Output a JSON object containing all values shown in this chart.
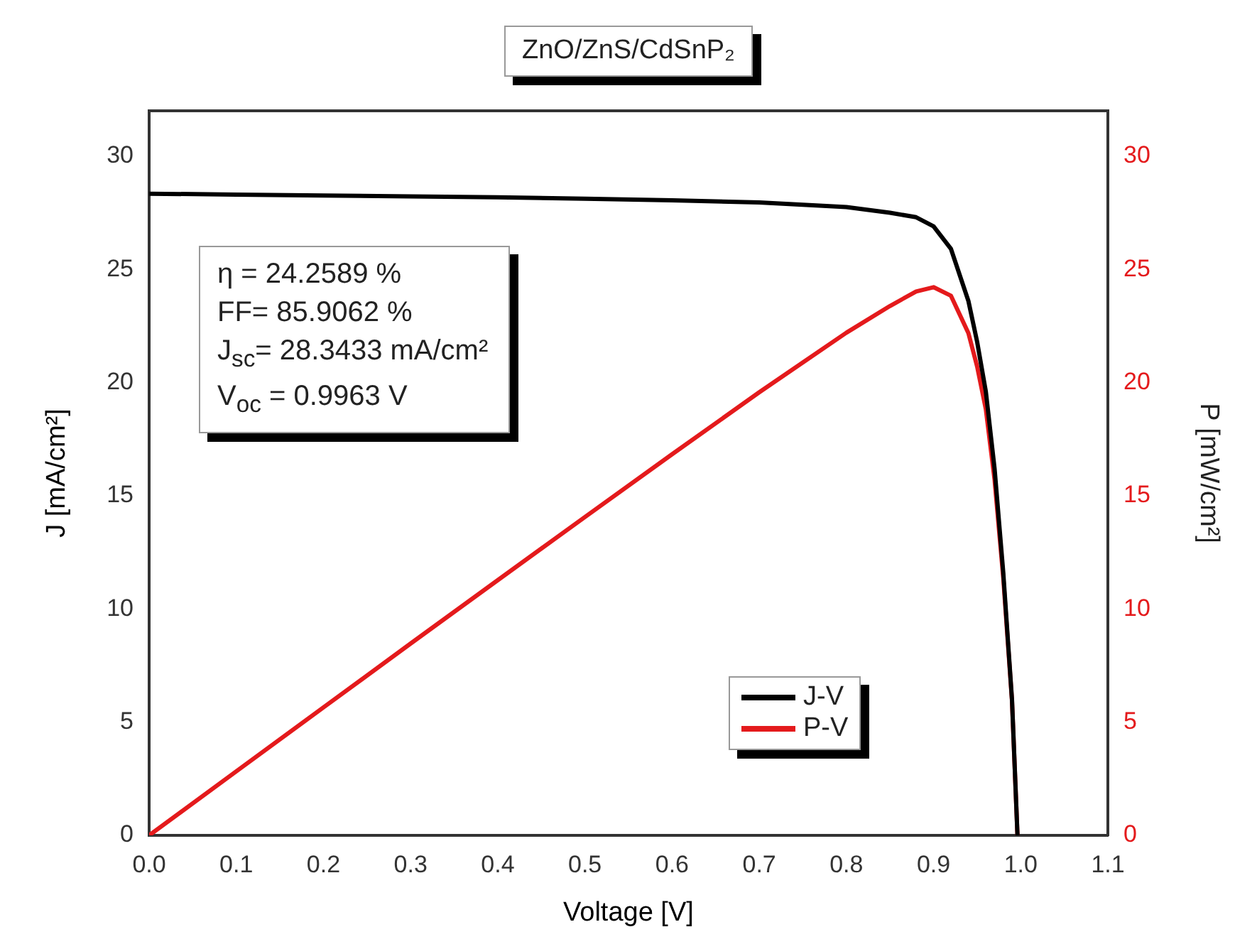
{
  "chart_data": {
    "type": "line",
    "title": "ZnO/ZnS/CdSnP₂",
    "xlabel": "Voltage [V]",
    "ylabel": "J [mA/cm²]",
    "y2label": "P [mW/cm²]",
    "series": [
      {
        "name": "J-V",
        "color": "#000000",
        "x": [
          0,
          0.1,
          0.2,
          0.3,
          0.4,
          0.5,
          0.6,
          0.7,
          0.8,
          0.85,
          0.88,
          0.9,
          0.92,
          0.94,
          0.95,
          0.96,
          0.97,
          0.98,
          0.99,
          0.9963
        ],
        "values": [
          28.34,
          28.3,
          28.26,
          28.22,
          28.18,
          28.12,
          28.05,
          27.95,
          27.75,
          27.5,
          27.3,
          26.9,
          25.9,
          23.6,
          21.8,
          19.6,
          16.2,
          11.6,
          6.0,
          0
        ]
      },
      {
        "name": "P-V",
        "color": "#e41a1c",
        "axis": "y2",
        "x": [
          0,
          0.1,
          0.2,
          0.3,
          0.4,
          0.5,
          0.6,
          0.7,
          0.8,
          0.85,
          0.88,
          0.9,
          0.92,
          0.94,
          0.95,
          0.96,
          0.97,
          0.98,
          0.99,
          0.9963
        ],
        "values": [
          0,
          2.83,
          5.65,
          8.47,
          11.27,
          14.06,
          16.83,
          19.57,
          22.2,
          23.38,
          24.02,
          24.21,
          23.83,
          22.18,
          20.71,
          18.82,
          15.71,
          11.37,
          5.94,
          0
        ]
      }
    ],
    "xlim": [
      0,
      1.1
    ],
    "xticks": [
      {
        "value": 0,
        "label": "0.0"
      },
      0.1,
      0.2,
      0.3,
      0.4,
      0.5,
      0.6,
      0.7,
      0.8,
      0.9,
      {
        "value": 1,
        "label": "1.0"
      },
      1.1
    ],
    "ylim": [
      0,
      32
    ],
    "yticks": [
      0,
      5,
      10,
      15,
      20,
      25,
      30
    ],
    "y2lim": [
      0,
      32
    ],
    "y2ticks": [
      0,
      5,
      10,
      15,
      20,
      25,
      30
    ],
    "grid": false,
    "legend": "bottom",
    "marker": "none",
    "line_style": "solid",
    "annotations": [
      "η = 24.2589 %",
      "FF= 85.9062 %",
      "J$_{sc}$= 28.3433 mA/cm²",
      "V$_{oc}$ = 0.9963 V"
    ]
  }
}
